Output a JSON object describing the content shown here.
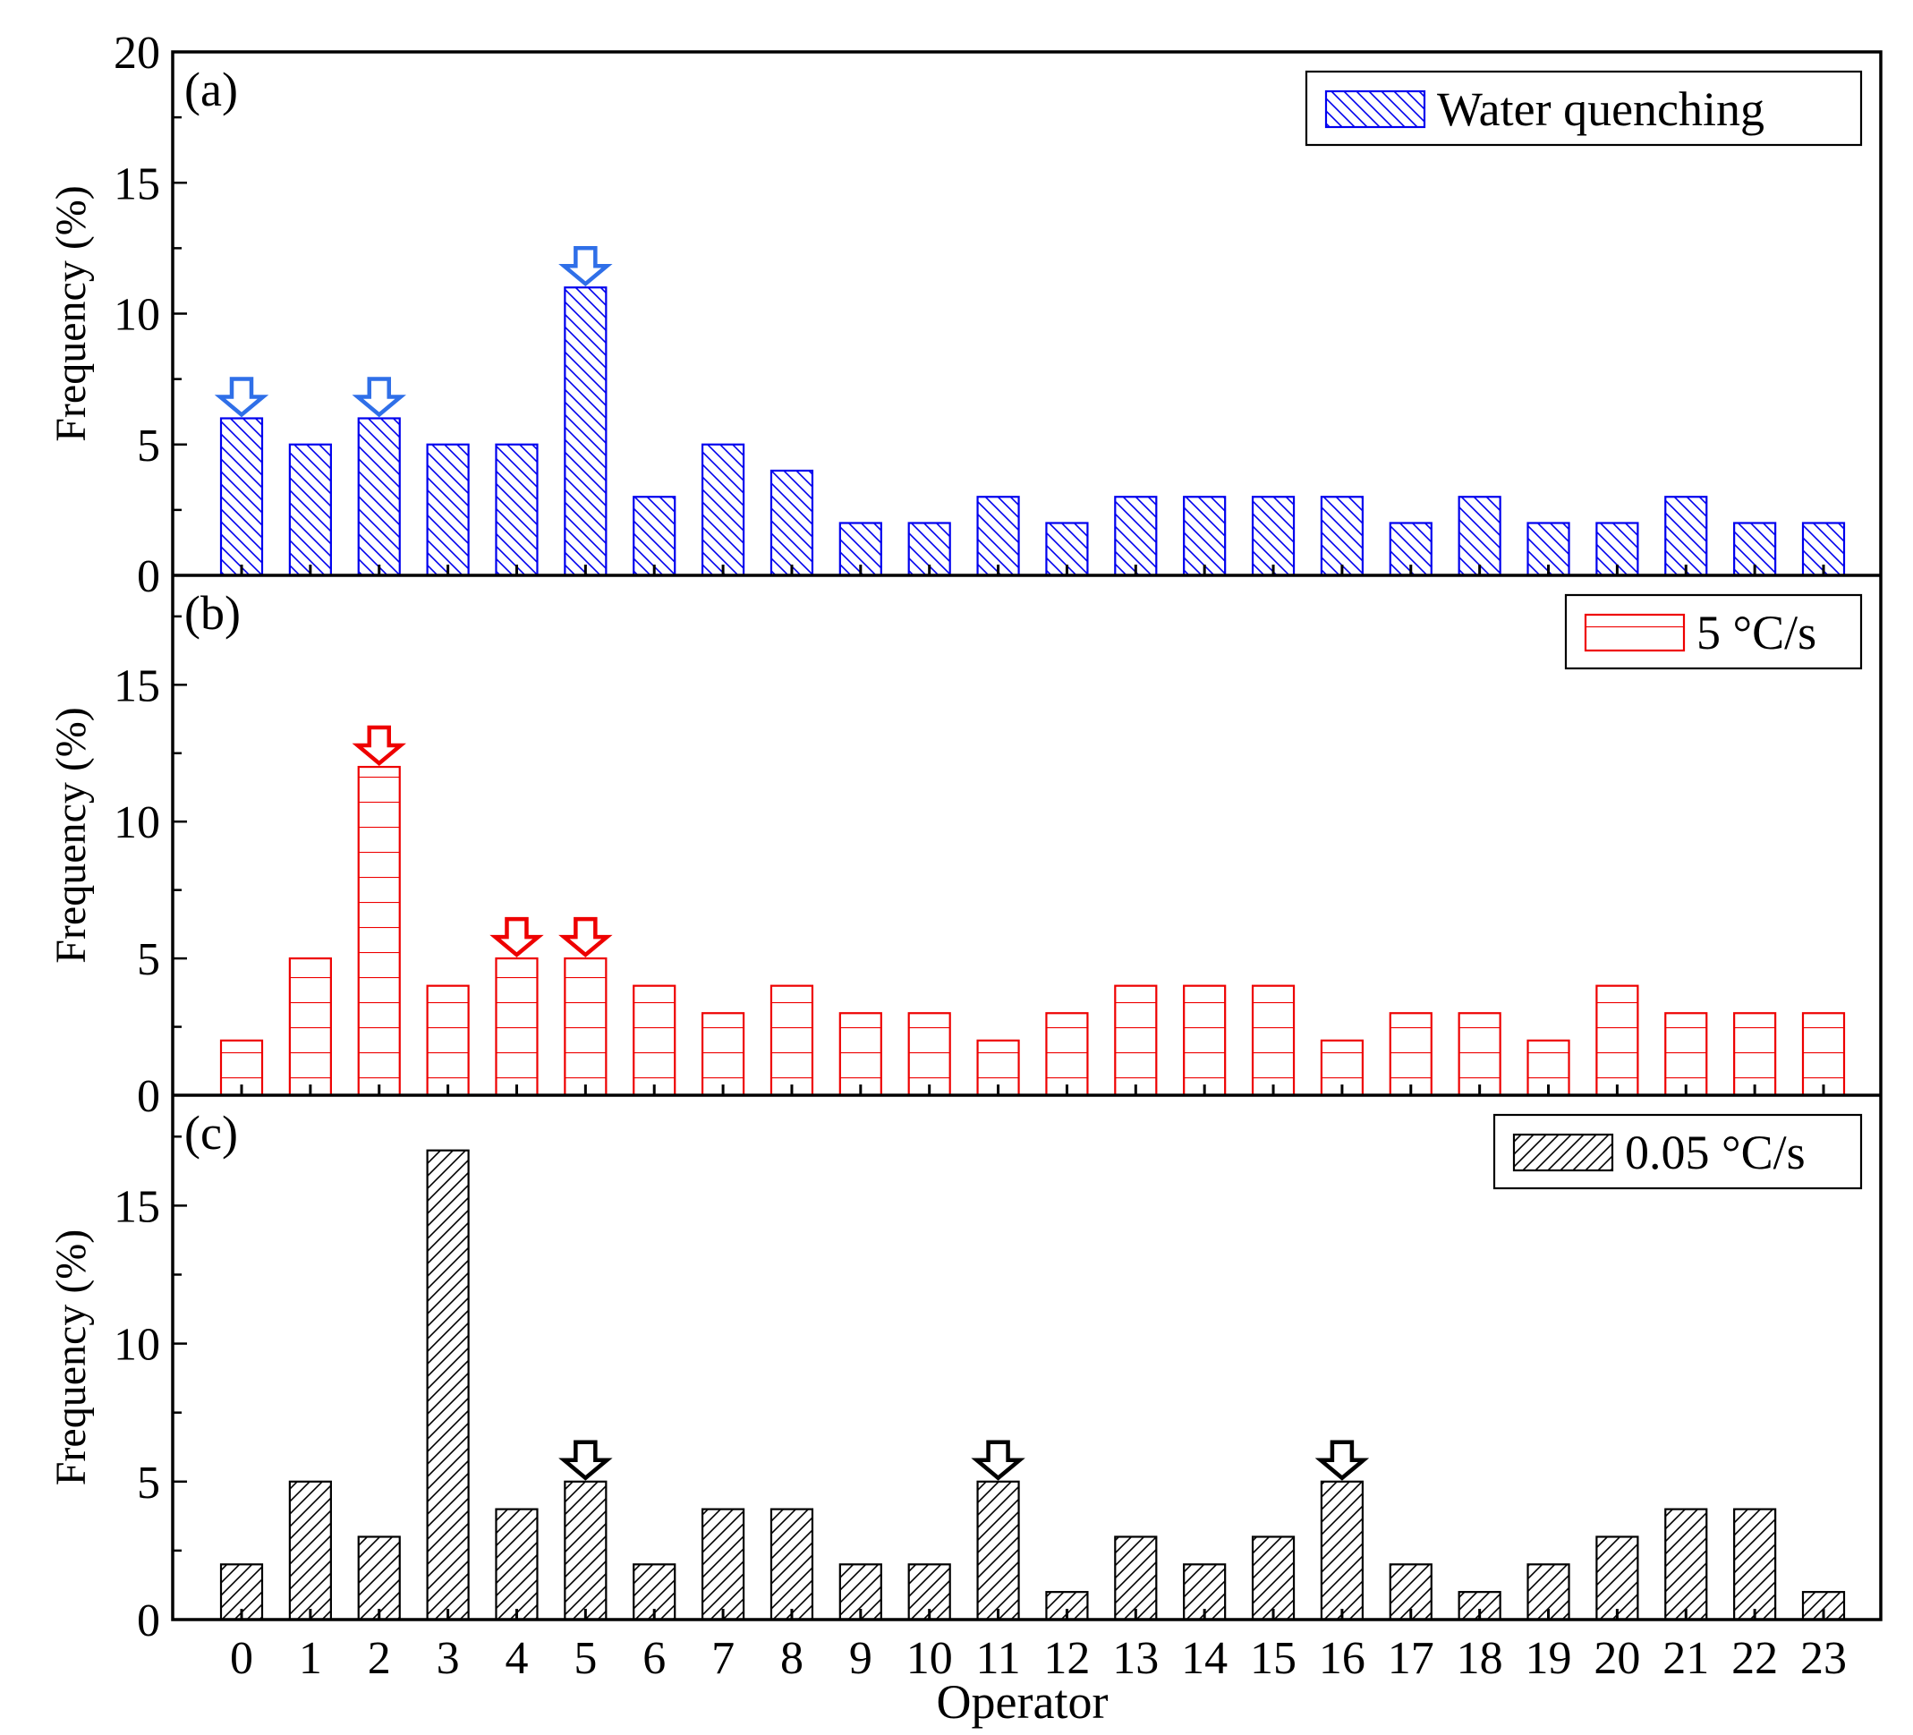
{
  "chart_data": {
    "type": "bar",
    "xlabel": "Operator",
    "ylabel": "Frequency (%)",
    "categories": [
      "0",
      "1",
      "2",
      "3",
      "4",
      "5",
      "6",
      "7",
      "8",
      "9",
      "10",
      "11",
      "12",
      "13",
      "14",
      "15",
      "16",
      "17",
      "18",
      "19",
      "20",
      "21",
      "22",
      "23"
    ],
    "panels": [
      {
        "label": "(a)",
        "legend": "Water quenching",
        "color": "#0000ee",
        "arrow_color": "#2f6fe8",
        "pattern": "backslash",
        "ylim": [
          0,
          20
        ],
        "yticks": [
          "0",
          "5",
          "10",
          "15",
          "20"
        ],
        "values": [
          6,
          5,
          6,
          5,
          5,
          11,
          3,
          5,
          4,
          2,
          2,
          3,
          2,
          3,
          3,
          3,
          3,
          2,
          3,
          2,
          2,
          3,
          2,
          2
        ],
        "arrows": [
          0,
          2,
          5
        ]
      },
      {
        "label": "(b)",
        "legend": "5 °C/s",
        "color": "#ee0000",
        "arrow_color": "#ee0000",
        "pattern": "horizontal",
        "ylim": [
          0,
          19
        ],
        "yticks": [
          "0",
          "5",
          "10",
          "15"
        ],
        "values": [
          2,
          5,
          12,
          4,
          5,
          5,
          4,
          3,
          4,
          3,
          3,
          2,
          3,
          4,
          4,
          4,
          2,
          3,
          3,
          2,
          4,
          3,
          3,
          3
        ],
        "arrows": [
          2,
          4,
          5
        ]
      },
      {
        "label": "(c)",
        "legend": "0.05 °C/s",
        "color": "#000000",
        "arrow_color": "#000000",
        "pattern": "slash",
        "ylim": [
          0,
          19
        ],
        "yticks": [
          "0",
          "5",
          "10",
          "15"
        ],
        "values": [
          2,
          5,
          3,
          17,
          4,
          5,
          2,
          4,
          4,
          2,
          2,
          5,
          1,
          3,
          2,
          3,
          5,
          2,
          1,
          2,
          3,
          4,
          4,
          1
        ],
        "arrows": [
          5,
          11,
          16
        ]
      }
    ]
  }
}
